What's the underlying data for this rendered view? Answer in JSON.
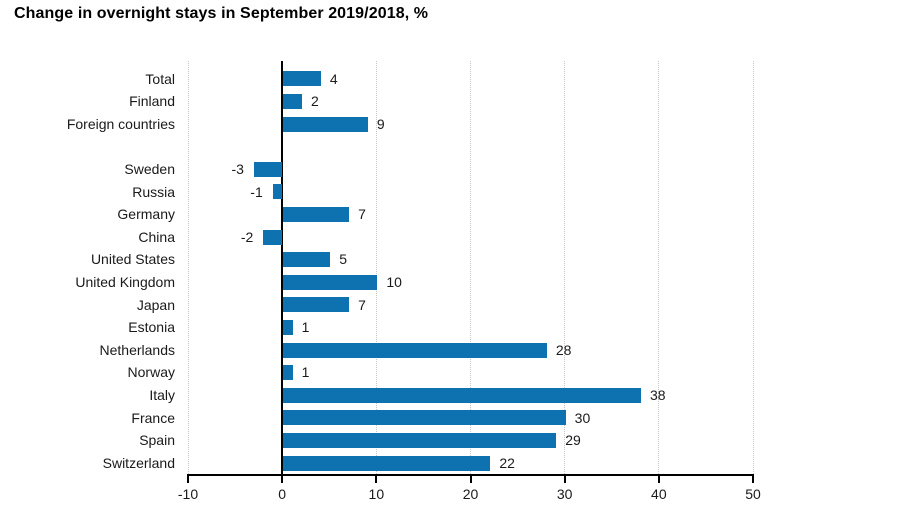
{
  "chart_data": {
    "type": "bar",
    "orientation": "horizontal",
    "title": "Change in overnight stays in September 2019/2018, %",
    "categories": [
      "Total",
      "Finland",
      "Foreign countries",
      "",
      "Sweden",
      "Russia",
      "Germany",
      "China",
      "United States",
      "United Kingdom",
      "Japan",
      "Estonia",
      "Netherlands",
      "Norway",
      "Italy",
      "France",
      "Spain",
      "Switzerland"
    ],
    "values": [
      4,
      2,
      9,
      null,
      -3,
      -1,
      7,
      -2,
      5,
      10,
      7,
      1,
      28,
      1,
      38,
      30,
      29,
      22
    ],
    "xlabel": "",
    "ylabel": "",
    "xlim": [
      -10,
      50
    ],
    "xticks": [
      -10,
      0,
      10,
      20,
      30,
      40,
      50
    ],
    "grid": true,
    "legend": false,
    "value_labels_shown": true,
    "bar_color": "#0e72b0",
    "gridline_color": "#c6c6c6",
    "axis_color": "#000000",
    "text_color": "#1a1a1a",
    "background_color": "#ffffff"
  }
}
